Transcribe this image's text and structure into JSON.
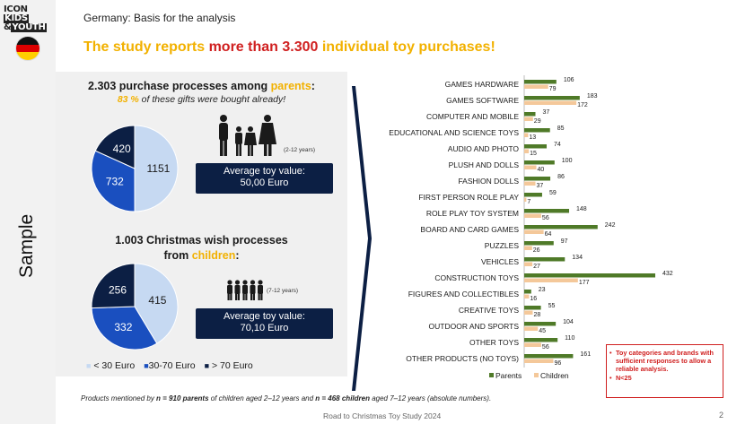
{
  "header": {
    "page_title": "Germany: Basis for the analysis",
    "headline_pre": "The study reports ",
    "headline_red": "more than 3.300",
    "headline_post": " individual toy purchases!"
  },
  "brand": {
    "logo_line1a": "ICON",
    "logo_line1b": "KIDS",
    "logo_line2a": "&",
    "logo_line2b": "YOUTH"
  },
  "sidebar": {
    "sample_label": "Sample"
  },
  "parents": {
    "title_pre": "2.303 purchase processes among ",
    "title_highlight": "parents",
    "title_post": ":",
    "subtitle_pct": "83 %",
    "subtitle_rest": " of these gifts were bought already!",
    "age": "(2-12 years)",
    "avg_label": "Average toy value:",
    "avg_value": "50,00 Euro"
  },
  "children": {
    "title_line1": "1.003 Christmas wish processes",
    "title_pre": "from ",
    "title_highlight": "children",
    "title_post": ":",
    "age": "(7-12 years)",
    "avg_label": "Average toy value:",
    "avg_value": "70,10 Euro"
  },
  "pie_legend": [
    "< 30 Euro",
    "30-70 Euro",
    "> 70 Euro"
  ],
  "colors": {
    "light": "#c6d9f2",
    "mid": "#1a4fbf",
    "dark": "#0c1f44",
    "parents": "#4f7a28",
    "children": "#f4c89a",
    "accent": "#f2b100",
    "red": "#d02020"
  },
  "chart_data": [
    {
      "type": "pie",
      "title": "2.303 purchase processes among parents",
      "labels": [
        "< 30 Euro",
        "30-70 Euro",
        "> 70 Euro"
      ],
      "values": [
        1151,
        732,
        420
      ]
    },
    {
      "type": "pie",
      "title": "1.003 Christmas wish processes from children",
      "labels": [
        "< 30 Euro",
        "30-70 Euro",
        "> 70 Euro"
      ],
      "values": [
        415,
        332,
        256
      ]
    },
    {
      "type": "bar",
      "orientation": "horizontal",
      "categories": [
        "GAMES HARDWARE",
        "GAMES SOFTWARE",
        "COMPUTER AND MOBILE",
        "EDUCATIONAL AND SCIENCE TOYS",
        "AUDIO AND PHOTO",
        "PLUSH AND DOLLS",
        "FASHION DOLLS",
        "FIRST PERSON ROLE PLAY",
        "ROLE PLAY TOY SYSTEM",
        "BOARD AND CARD GAMES",
        "PUZZLES",
        "VEHICLES",
        "CONSTRUCTION TOYS",
        "FIGURES AND COLLECTIBLES",
        "CREATIVE TOYS",
        "OUTDOOR AND SPORTS",
        "OTHER TOYS",
        "OTHER PRODUCTS (NO TOYS)"
      ],
      "series": [
        {
          "name": "Parents",
          "values": [
            106,
            183,
            37,
            85,
            74,
            100,
            86,
            59,
            148,
            242,
            97,
            134,
            432,
            23,
            55,
            104,
            110,
            161
          ]
        },
        {
          "name": "Children",
          "values": [
            79,
            172,
            29,
            13,
            15,
            40,
            37,
            7,
            56,
            64,
            26,
            27,
            177,
            16,
            28,
            45,
            56,
            96
          ]
        }
      ],
      "xlim": [
        0,
        432
      ],
      "legend": "bottom"
    }
  ],
  "notes": {
    "footer_pre": "Products mentioned by ",
    "footer_n1": "n = 910 parents",
    "footer_mid": " of children aged 2–12 years and ",
    "footer_n2": "n = 468 children",
    "footer_post": " aged 7–12 years (absolute numbers).",
    "footer_center": "Road to Christmas Toy Study 2024",
    "page_number": "2",
    "caveat_text": "Toy categories and brands with sufficient responses to allow a reliable analysis.",
    "caveat_n": "N<25"
  }
}
